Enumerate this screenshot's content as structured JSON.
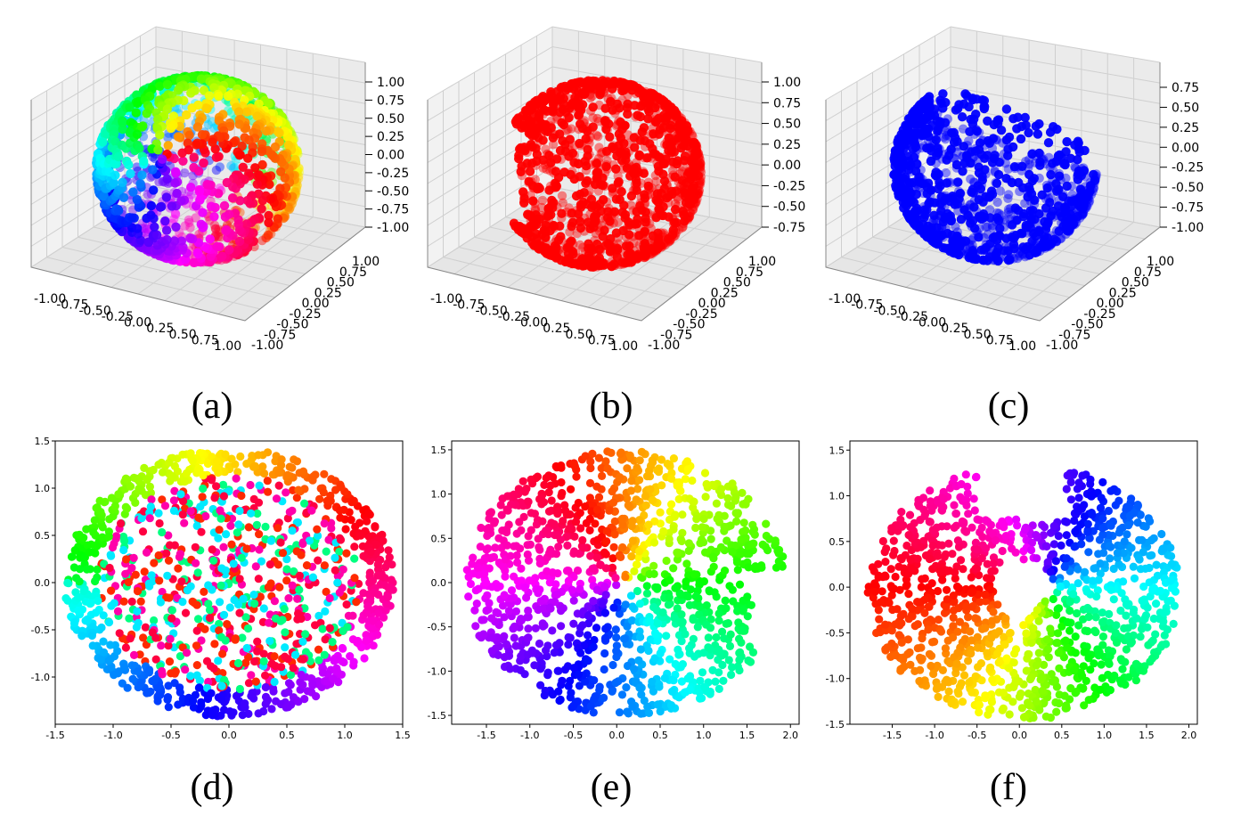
{
  "captions": [
    "(a)",
    "(b)",
    "(c)",
    "(d)",
    "(e)",
    "(f)"
  ],
  "chart_data": [
    {
      "type": "scatter",
      "projection": "3d",
      "panel": "(a)",
      "point_color": "hue-colored (rainbow)",
      "shape": "full sphere",
      "xlim": [
        -1,
        1
      ],
      "ylim": [
        -1,
        1
      ],
      "zlim": [
        -1,
        1
      ],
      "x_ticks": [
        "-1.00",
        "-0.75",
        "-0.50",
        "-0.25",
        "0.00",
        "0.25",
        "0.50",
        "0.75",
        "1.00"
      ],
      "y_ticks": [
        "-1.00",
        "-0.75",
        "-0.50",
        "-0.25",
        "0.00",
        "0.25",
        "0.50",
        "0.75",
        "1.00"
      ],
      "z_ticks": [
        "-1.00",
        "-0.75",
        "-0.50",
        "-0.25",
        "0.00",
        "0.25",
        "0.50",
        "0.75",
        "1.00"
      ],
      "grid": true
    },
    {
      "type": "scatter",
      "projection": "3d",
      "panel": "(b)",
      "point_color": "#ff0000",
      "shape": "sphere with a cut-out cap",
      "xlim": [
        -1,
        1
      ],
      "ylim": [
        -1,
        1
      ],
      "zlim": [
        -0.75,
        1
      ],
      "x_ticks": [
        "-1.00",
        "-0.75",
        "-0.50",
        "-0.25",
        "0.00",
        "0.25",
        "0.50",
        "0.75",
        "1.00"
      ],
      "y_ticks": [
        "-1.00",
        "-0.75",
        "-0.50",
        "-0.25",
        "0.00",
        "0.25",
        "0.50",
        "0.75",
        "1.00"
      ],
      "z_ticks": [
        "-0.75",
        "-0.50",
        "-0.25",
        "0.00",
        "0.25",
        "0.50",
        "0.75",
        "1.00"
      ],
      "grid": true
    },
    {
      "type": "scatter",
      "projection": "3d",
      "panel": "(c)",
      "point_color": "#0000ff",
      "shape": "partial sphere (lower bowl)",
      "xlim": [
        -1,
        1
      ],
      "ylim": [
        -1,
        1
      ],
      "zlim": [
        -1,
        0.75
      ],
      "x_ticks": [
        "-1.00",
        "-0.75",
        "-0.50",
        "-0.25",
        "0.00",
        "0.25",
        "0.50",
        "0.75",
        "1.00"
      ],
      "y_ticks": [
        "-1.00",
        "-0.75",
        "-0.50",
        "-0.25",
        "0.00",
        "0.25",
        "0.50",
        "0.75",
        "1.00"
      ],
      "z_ticks": [
        "-1.00",
        "-0.75",
        "-0.50",
        "-0.25",
        "0.00",
        "0.25",
        "0.50",
        "0.75"
      ],
      "grid": true
    },
    {
      "type": "scatter",
      "panel": "(d)",
      "point_color": "hue-colored (rainbow)",
      "shape": "filled ellipse",
      "xlim": [
        -1.5,
        1.5
      ],
      "ylim": [
        -1.5,
        1.5
      ],
      "x_ticks": [
        "-1.5",
        "-1.0",
        "-0.5",
        "0.0",
        "0.5",
        "1.0",
        "1.5"
      ],
      "y_ticks": [
        "-1.0",
        "-0.5",
        "0.0",
        "0.5",
        "1.0",
        "1.5"
      ],
      "grid": false
    },
    {
      "type": "scatter",
      "panel": "(e)",
      "point_color": "hue-colored (rainbow)",
      "shape": "disk with a notch on the right",
      "xlim": [
        -1.9,
        2.1
      ],
      "ylim": [
        -1.6,
        1.6
      ],
      "x_ticks": [
        "-1.5",
        "-1.0",
        "-0.5",
        "0.0",
        "0.5",
        "1.0",
        "1.5",
        "2.0"
      ],
      "y_ticks": [
        "-1.5",
        "-1.0",
        "-0.5",
        "0.0",
        "0.5",
        "1.0",
        "1.5"
      ],
      "grid": false
    },
    {
      "type": "scatter",
      "panel": "(f)",
      "point_color": "hue-colored (rainbow)",
      "shape": "heart-like blob with top notch",
      "xlim": [
        -2.0,
        2.1
      ],
      "ylim": [
        -1.5,
        1.6
      ],
      "x_ticks": [
        "-1.5",
        "-1.0",
        "-0.5",
        "0.0",
        "0.5",
        "1.0",
        "1.5",
        "2.0"
      ],
      "y_ticks": [
        "-1.5",
        "-1.0",
        "-0.5",
        "0.0",
        "0.5",
        "1.0",
        "1.5"
      ],
      "grid": false
    }
  ]
}
